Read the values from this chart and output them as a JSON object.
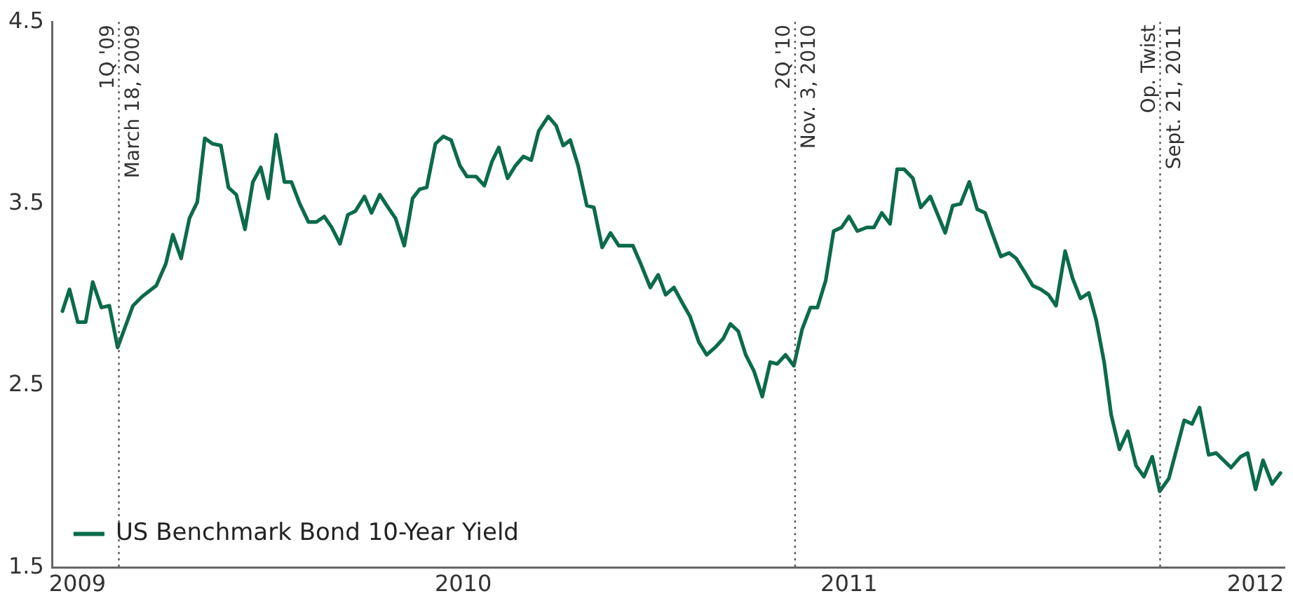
{
  "chart_data": {
    "type": "line",
    "legend": "bottom left",
    "marker": "none",
    "line_style": "solid",
    "grid": false,
    "xlim": [
      2009.05,
      2012.02
    ],
    "xticks": [
      {
        "value": 2009.11,
        "label": "2009"
      },
      {
        "value": 2010.04,
        "label": "2010"
      },
      {
        "value": 2010.97,
        "label": "2011"
      },
      {
        "value": 2011.95,
        "label": "2012"
      }
    ],
    "ylim": [
      1.5,
      4.5
    ],
    "yticks": [
      1.5,
      2.5,
      3.5,
      4.5
    ],
    "ref_lines": [
      {
        "axis": "x",
        "value": 2009.21,
        "label": "1Q '09\nMarch 18, 2009",
        "color": "#555555",
        "line_style": "dotted"
      },
      {
        "axis": "x",
        "value": 2010.84,
        "label": "2Q '10\nNov. 3, 2010",
        "color": "#555555",
        "line_style": "dotted"
      },
      {
        "axis": "x",
        "value": 2011.72,
        "label": "Op. Twist\nSept. 21, 2011",
        "color": "#555555",
        "line_style": "dotted"
      }
    ],
    "series": [
      {
        "name": "US Benchmark Bond 10-Year Yield",
        "color": "#0b6b4b",
        "x": [
          2009.074,
          2009.091,
          2009.111,
          2009.13,
          2009.147,
          2009.168,
          2009.187,
          2009.207,
          2009.244,
          2009.266,
          2009.3,
          2009.323,
          2009.34,
          2009.36,
          2009.38,
          2009.399,
          2009.417,
          2009.436,
          2009.456,
          2009.474,
          2009.493,
          2009.514,
          2009.533,
          2009.552,
          2009.57,
          2009.589,
          2009.609,
          2009.626,
          2009.646,
          2009.667,
          2009.686,
          2009.705,
          2009.723,
          2009.743,
          2009.762,
          2009.78,
          2009.802,
          2009.819,
          2009.839,
          2009.856,
          2009.877,
          2009.898,
          2009.918,
          2009.935,
          2009.952,
          2009.973,
          2009.992,
          2010.011,
          2010.032,
          2010.049,
          2010.071,
          2010.091,
          2010.109,
          2010.126,
          2010.147,
          2010.166,
          2010.185,
          2010.204,
          2010.222,
          2010.245,
          2010.264,
          2010.281,
          2010.298,
          2010.317,
          2010.338,
          2010.355,
          2010.375,
          2010.395,
          2010.415,
          2010.449,
          2010.468,
          2010.491,
          2010.51,
          2010.528,
          2010.548,
          2010.567,
          2010.587,
          2010.608,
          2010.627,
          2010.647,
          2010.667,
          2010.684,
          2010.703,
          2010.721,
          2010.741,
          2010.761,
          2010.78,
          2010.797,
          2010.817,
          2010.837,
          2010.857,
          2010.877,
          2010.894,
          2010.914,
          2010.933,
          2010.952,
          2010.97,
          2010.99,
          2011.013,
          2011.03,
          2011.049,
          2011.069,
          2011.086,
          2011.103,
          2011.124,
          2011.143,
          2011.166,
          2011.202,
          2011.22,
          2011.239,
          2011.26,
          2011.279,
          2011.298,
          2011.315,
          2011.336,
          2011.356,
          2011.373,
          2011.392,
          2011.413,
          2011.432,
          2011.451,
          2011.469,
          2011.491,
          2011.509,
          2011.528,
          2011.548,
          2011.566,
          2011.585,
          2011.602,
          2011.622,
          2011.642,
          2011.662,
          2011.681,
          2011.701,
          2011.719,
          2011.741,
          2011.778,
          2011.797,
          2011.815,
          2011.837,
          2011.855,
          2011.891,
          2011.914,
          2011.931,
          2011.95,
          2011.968,
          2011.99,
          2012.01
        ],
        "values": [
          2.91,
          3.03,
          2.85,
          2.85,
          3.07,
          2.93,
          2.94,
          2.71,
          2.94,
          2.99,
          3.05,
          3.17,
          3.33,
          3.2,
          3.42,
          3.51,
          3.86,
          3.83,
          3.82,
          3.59,
          3.55,
          3.36,
          3.62,
          3.7,
          3.53,
          3.88,
          3.62,
          3.62,
          3.5,
          3.4,
          3.4,
          3.43,
          3.37,
          3.28,
          3.44,
          3.46,
          3.54,
          3.45,
          3.55,
          3.49,
          3.42,
          3.27,
          3.53,
          3.58,
          3.59,
          3.83,
          3.87,
          3.85,
          3.71,
          3.65,
          3.65,
          3.6,
          3.73,
          3.81,
          3.64,
          3.71,
          3.76,
          3.74,
          3.9,
          3.98,
          3.93,
          3.82,
          3.85,
          3.71,
          3.49,
          3.48,
          3.26,
          3.34,
          3.27,
          3.27,
          3.17,
          3.04,
          3.11,
          3.0,
          3.04,
          2.96,
          2.88,
          2.74,
          2.67,
          2.71,
          2.76,
          2.84,
          2.8,
          2.67,
          2.58,
          2.44,
          2.63,
          2.62,
          2.67,
          2.61,
          2.81,
          2.93,
          2.93,
          3.08,
          3.35,
          3.37,
          3.43,
          3.35,
          3.37,
          3.37,
          3.45,
          3.39,
          3.69,
          3.69,
          3.64,
          3.48,
          3.54,
          3.34,
          3.49,
          3.5,
          3.62,
          3.47,
          3.45,
          3.34,
          3.21,
          3.23,
          3.2,
          3.13,
          3.05,
          3.03,
          3.0,
          2.94,
          3.24,
          3.09,
          2.98,
          3.01,
          2.86,
          2.63,
          2.34,
          2.15,
          2.25,
          2.06,
          2.0,
          2.11,
          1.92,
          1.99,
          2.31,
          2.29,
          2.38,
          2.12,
          2.13,
          2.05,
          2.11,
          2.13,
          1.93,
          2.09,
          1.96,
          2.02
        ]
      }
    ]
  }
}
